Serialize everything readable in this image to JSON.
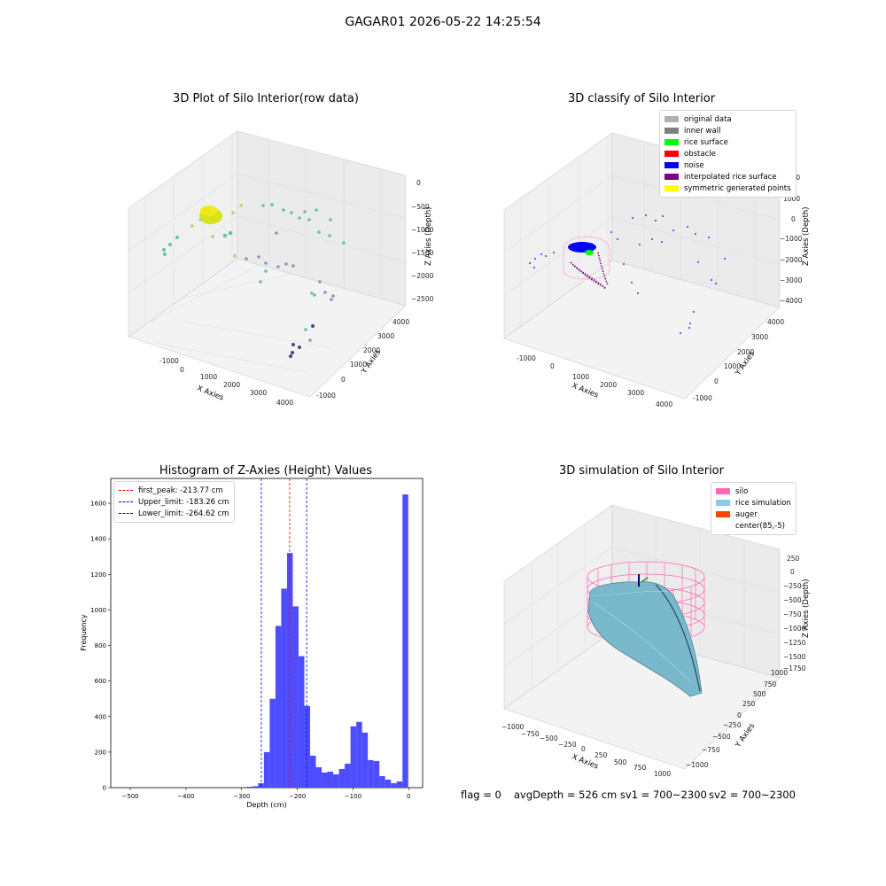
{
  "suptitle": "GAGAR01 2026-05-22 14:25:54",
  "panels": {
    "raw": {
      "title": "3D Plot of Silo Interior(row data)",
      "xlabel": "X Axies",
      "ylabel": "Y Axies",
      "zlabel": "Z Axies (Depth)",
      "xticks": [
        "-1000",
        "0",
        "1000",
        "2000",
        "3000",
        "4000"
      ],
      "yticks": [
        "-1000",
        "0",
        "1000",
        "2000",
        "3000",
        "4000"
      ],
      "zticks": [
        "0",
        "-500",
        "-1000",
        "-1500",
        "-2000",
        "-2500"
      ]
    },
    "classify": {
      "title": "3D classify of Silo Interior",
      "xlabel": "X Axies",
      "ylabel": "Y Axies",
      "zlabel": "Z Axies (Depth)",
      "xticks": [
        "-1000",
        "0",
        "1000",
        "2000",
        "3000",
        "4000"
      ],
      "yticks": [
        "-1000",
        "0",
        "1000",
        "2000",
        "3000",
        "4000"
      ],
      "zticks": [
        "2000",
        "1000",
        "0",
        "-1000",
        "-2000",
        "-3000",
        "-4000"
      ],
      "legend": [
        {
          "label": "original data",
          "color": "#b0b0b0"
        },
        {
          "label": "inner wall",
          "color": "#808080"
        },
        {
          "label": "rice surface",
          "color": "#00ff00"
        },
        {
          "label": "obstacle",
          "color": "#ff0000"
        },
        {
          "label": "noise",
          "color": "#0000ff"
        },
        {
          "label": "interpolated rice surface",
          "color": "#800080"
        },
        {
          "label": "symmetric generated points",
          "color": "#ffff00"
        }
      ]
    },
    "histogram": {
      "title": "Histogram of Z-Axies (Height) Values",
      "xlabel": "Depth (cm)",
      "ylabel": "Frequency",
      "legend": [
        {
          "label": "first_peak: -213.77 cm",
          "color": "#ff0000"
        },
        {
          "label": "Upper_limit: -183.26 cm",
          "color": "#0000ff"
        },
        {
          "label": "Lower_limit: -264.62 cm",
          "color": "#0000ff"
        }
      ]
    },
    "simulation": {
      "title": "3D simulation of Silo Interior",
      "xlabel": "X Axies",
      "ylabel": "Y Axies",
      "zlabel": "Z Axies (Depth)",
      "xticks": [
        "-1000",
        "-750",
        "-500",
        "-250",
        "0",
        "250",
        "500",
        "750",
        "1000"
      ],
      "yticks": [
        "-1000",
        "-750",
        "-500",
        "-250",
        "0",
        "250",
        "500",
        "750",
        "1000"
      ],
      "zticks": [
        "250",
        "0",
        "-250",
        "-500",
        "-750",
        "-1000",
        "-1250",
        "-1500",
        "-1750"
      ],
      "legend": [
        {
          "label": "silo",
          "color": "#ff69b4"
        },
        {
          "label": "rice simulation",
          "color": "#87ceeb"
        },
        {
          "label": "auger",
          "color": "#ff4500"
        },
        {
          "label": "center(85,-5)",
          "color": "#ffffff"
        }
      ]
    }
  },
  "footer": {
    "flag": "flag = 0",
    "avg": "avgDepth = 526 cm  sv1 = 700~2300",
    "sv2": "sv2 = 700~2300"
  },
  "chart_data": [
    {
      "type": "bar",
      "title": "Histogram of Z-Axies (Height) Values",
      "xlabel": "Depth (cm)",
      "ylabel": "Frequency",
      "xlim": [
        -535,
        25
      ],
      "ylim": [
        0,
        1740
      ],
      "xticks": [
        -500,
        -400,
        -300,
        -200,
        -100,
        0
      ],
      "yticks": [
        0,
        200,
        400,
        600,
        800,
        1000,
        1200,
        1400,
        1600
      ],
      "bin_width": 10.37,
      "bin_starts": [
        -301.5,
        -291.1,
        -280.7,
        -270.4,
        -260.0,
        -249.6,
        -239.3,
        -228.9,
        -218.5,
        -208.2,
        -197.8,
        -187.4,
        -177.1,
        -166.7,
        -156.3,
        -146.0,
        -135.6,
        -125.2,
        -114.9,
        -104.5,
        -94.1,
        -83.8,
        -73.4,
        -63.0,
        -52.7,
        -42.3,
        -31.9,
        -21.6,
        -11.2
      ],
      "values": [
        3,
        5,
        8,
        25,
        200,
        500,
        910,
        1120,
        1320,
        1020,
        740,
        460,
        180,
        115,
        85,
        90,
        75,
        105,
        135,
        345,
        370,
        310,
        155,
        150,
        65,
        45,
        25,
        35,
        1650
      ],
      "vlines": [
        {
          "x": -213.77,
          "label": "first_peak: -213.77 cm",
          "color": "#ff0000"
        },
        {
          "x": -183.26,
          "label": "Upper_limit: -183.26 cm",
          "color": "#0000ff"
        },
        {
          "x": -264.62,
          "label": "Lower_limit: -264.62 cm",
          "color": "#0000ff"
        }
      ],
      "bar_color": "#4d4dff"
    }
  ]
}
